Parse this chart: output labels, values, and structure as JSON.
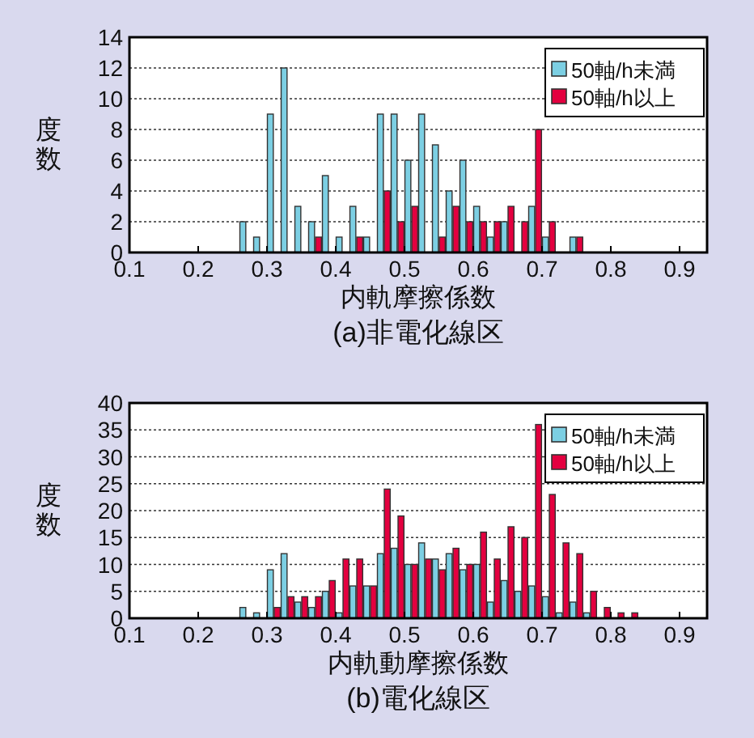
{
  "chart_data": [
    {
      "type": "histogram",
      "title": "(a)非電化線区",
      "xlabel": "内軌摩擦係数",
      "ylabel": "度数",
      "bins": [
        0.26,
        0.28,
        0.3,
        0.32,
        0.34,
        0.36,
        0.38,
        0.4,
        0.42,
        0.44,
        0.46,
        0.48,
        0.5,
        0.52,
        0.54,
        0.56,
        0.58,
        0.6,
        0.62,
        0.64,
        0.66,
        0.68,
        0.7,
        0.72,
        0.74,
        0.76
      ],
      "series": [
        {
          "name": "50軸/h未満",
          "color": "#7ccfe3",
          "values": [
            2,
            1,
            9,
            12,
            3,
            2,
            5,
            1,
            3,
            1,
            9,
            9,
            6,
            9,
            7,
            4,
            6,
            3,
            1,
            2,
            0,
            3,
            1,
            0,
            1
          ]
        },
        {
          "name": "50軸/h以上",
          "color": "#e3003f",
          "values": [
            0,
            0,
            0,
            0,
            0,
            1,
            0,
            0,
            1,
            0,
            4,
            2,
            3,
            0,
            1,
            3,
            2,
            2,
            2,
            3,
            2,
            8,
            2,
            0,
            1
          ]
        }
      ],
      "xlim": [
        0.1,
        0.94
      ],
      "ylim": [
        0,
        14
      ],
      "xticks": [
        0.1,
        0.2,
        0.3,
        0.4,
        0.5,
        0.6,
        0.7,
        0.8,
        0.9
      ],
      "yticks": [
        0,
        2,
        4,
        6,
        8,
        10,
        12,
        14
      ],
      "grid": "y",
      "legend": "top right"
    },
    {
      "type": "histogram",
      "title": "(b)電化線区",
      "xlabel": "内軌動摩擦係数",
      "ylabel": "度数",
      "bins": [
        0.26,
        0.28,
        0.3,
        0.32,
        0.34,
        0.36,
        0.38,
        0.4,
        0.42,
        0.44,
        0.46,
        0.48,
        0.5,
        0.52,
        0.54,
        0.56,
        0.58,
        0.6,
        0.62,
        0.64,
        0.66,
        0.68,
        0.7,
        0.72,
        0.74,
        0.76,
        0.78,
        0.8,
        0.82,
        0.84
      ],
      "series": [
        {
          "name": "50軸/h未満",
          "color": "#7ccfe3",
          "values": [
            2,
            1,
            9,
            12,
            3,
            2,
            5,
            1,
            6,
            6,
            12,
            13,
            10,
            14,
            11,
            12,
            9,
            10,
            3,
            7,
            5,
            6,
            4,
            1,
            3,
            1,
            0,
            0,
            0
          ]
        },
        {
          "name": "50軸/h以上",
          "color": "#e3003f",
          "values": [
            0,
            0,
            2,
            4,
            4,
            4,
            7,
            11,
            11,
            6,
            24,
            19,
            10,
            11,
            9,
            13,
            10,
            16,
            11,
            17,
            15,
            36,
            23,
            14,
            12,
            5,
            2,
            1,
            1
          ]
        }
      ],
      "xlim": [
        0.1,
        0.94
      ],
      "ylim": [
        0,
        40
      ],
      "xticks": [
        0.1,
        0.2,
        0.3,
        0.4,
        0.5,
        0.6,
        0.7,
        0.8,
        0.9
      ],
      "yticks": [
        0,
        5,
        10,
        15,
        20,
        25,
        30,
        35,
        40
      ],
      "grid": "y",
      "legend": "top right"
    }
  ]
}
